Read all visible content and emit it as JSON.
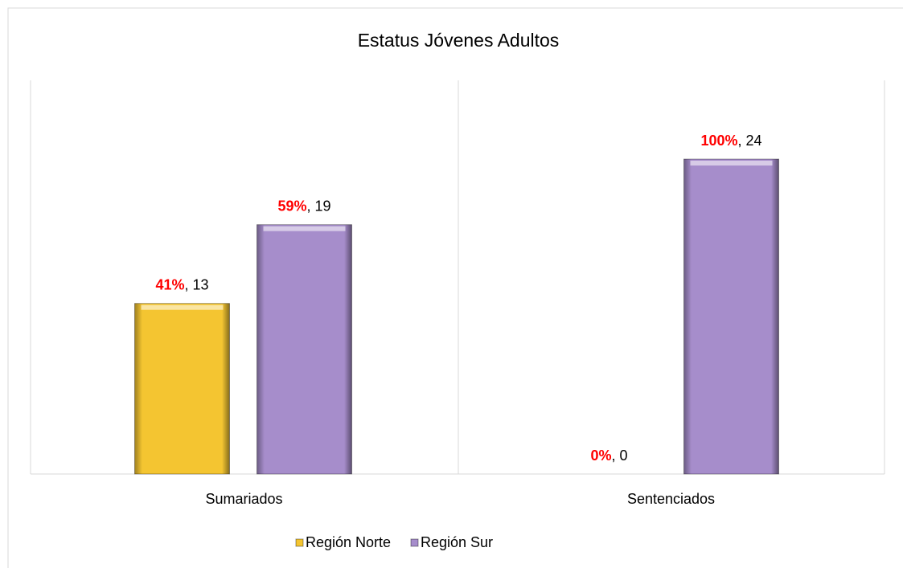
{
  "chart_data": {
    "type": "bar",
    "title": "Estatus Jóvenes Adultos",
    "categories": [
      "Sumariados",
      "Sentenciados"
    ],
    "series": [
      {
        "name": "Región Norte",
        "color": "#f4c531",
        "values": [
          13,
          0
        ],
        "percent_labels": [
          "41%",
          "0%"
        ]
      },
      {
        "name": "Región Sur",
        "color": "#a68dcb",
        "values": [
          19,
          24
        ],
        "percent_labels": [
          "59%",
          "100%"
        ]
      }
    ],
    "label_separator": ", ",
    "percent_color": "#ff0000",
    "ylim": [
      0,
      30
    ]
  }
}
